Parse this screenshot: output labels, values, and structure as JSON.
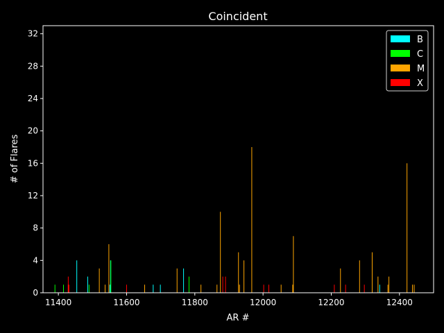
{
  "chart_data": {
    "type": "bar",
    "title": "Coincident",
    "xlabel": "AR #",
    "ylabel": "# of Flares",
    "xlim": [
      11355,
      12500
    ],
    "ylim": [
      0,
      33
    ],
    "xticks": [
      11400,
      11600,
      11800,
      12000,
      12200,
      12400
    ],
    "yticks": [
      0,
      4,
      8,
      12,
      16,
      20,
      24,
      28,
      32
    ],
    "grid": false,
    "legend_position": "top-right",
    "background": "#000000",
    "series": [
      {
        "name": "B",
        "color": "#00ffff",
        "points": [
          [
            11454,
            4
          ],
          [
            11486,
            2
          ],
          [
            11551,
            1
          ],
          [
            11553,
            4
          ],
          [
            11678,
            1
          ],
          [
            11699,
            1
          ],
          [
            11767,
            3
          ],
          [
            12342,
            1
          ]
        ]
      },
      {
        "name": "C",
        "color": "#00ff00",
        "points": [
          [
            11390,
            1
          ],
          [
            11415,
            1
          ],
          [
            11490,
            1
          ],
          [
            11554,
            4
          ],
          [
            11783,
            2
          ]
        ]
      },
      {
        "name": "M",
        "color": "#ffa500",
        "points": [
          [
            11429,
            1
          ],
          [
            11520,
            3
          ],
          [
            11537,
            1
          ],
          [
            11548,
            6
          ],
          [
            11653,
            1
          ],
          [
            11748,
            3
          ],
          [
            11818,
            1
          ],
          [
            11865,
            1
          ],
          [
            11875,
            10
          ],
          [
            11928,
            5
          ],
          [
            11931,
            1
          ],
          [
            11944,
            4
          ],
          [
            11967,
            18
          ],
          [
            12053,
            1
          ],
          [
            12087,
            1
          ],
          [
            12089,
            7
          ],
          [
            12227,
            3
          ],
          [
            12283,
            4
          ],
          [
            12320,
            5
          ],
          [
            12337,
            2
          ],
          [
            12366,
            1
          ],
          [
            12369,
            2
          ],
          [
            12422,
            16
          ],
          [
            12438,
            1
          ],
          [
            12443,
            1
          ]
        ]
      },
      {
        "name": "X",
        "color": "#ff0000",
        "points": [
          [
            11429,
            2
          ],
          [
            11431,
            1
          ],
          [
            11600,
            1
          ],
          [
            11882,
            2
          ],
          [
            11890,
            2
          ],
          [
            12002,
            1
          ],
          [
            12017,
            1
          ],
          [
            12209,
            1
          ],
          [
            12242,
            1
          ],
          [
            12297,
            1
          ]
        ]
      }
    ]
  }
}
